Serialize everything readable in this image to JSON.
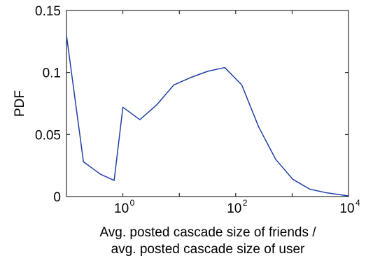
{
  "chart_data": {
    "type": "line",
    "title": "",
    "xlabel_line1": "Avg. posted cascade size of friends /",
    "xlabel_line2": "avg. posted cascade size of user",
    "ylabel": "PDF",
    "xscale": "log",
    "xlim": [
      0.1,
      10000
    ],
    "ylim": [
      0,
      0.15
    ],
    "grid": false,
    "yticks": [
      {
        "value": 0,
        "label": "0"
      },
      {
        "value": 0.05,
        "label": "0.05"
      },
      {
        "value": 0.1,
        "label": "0.1"
      },
      {
        "value": 0.15,
        "label": "0.15"
      }
    ],
    "xticks": [
      {
        "value": 1,
        "base": "10",
        "exp": "0"
      },
      {
        "value": 100,
        "base": "10",
        "exp": "2"
      },
      {
        "value": 10000,
        "base": "10",
        "exp": "4"
      }
    ],
    "series": [
      {
        "color": "#1f3fa8",
        "x": [
          0.1,
          0.2,
          0.4,
          0.7,
          1.0,
          2.0,
          4.0,
          8.0,
          16,
          32,
          64,
          128,
          256,
          512,
          1024,
          2048,
          4096,
          10000
        ],
        "y": [
          0.13,
          0.028,
          0.018,
          0.013,
          0.072,
          0.062,
          0.074,
          0.09,
          0.096,
          0.101,
          0.104,
          0.09,
          0.056,
          0.03,
          0.014,
          0.006,
          0.003,
          0.0005
        ]
      }
    ]
  }
}
